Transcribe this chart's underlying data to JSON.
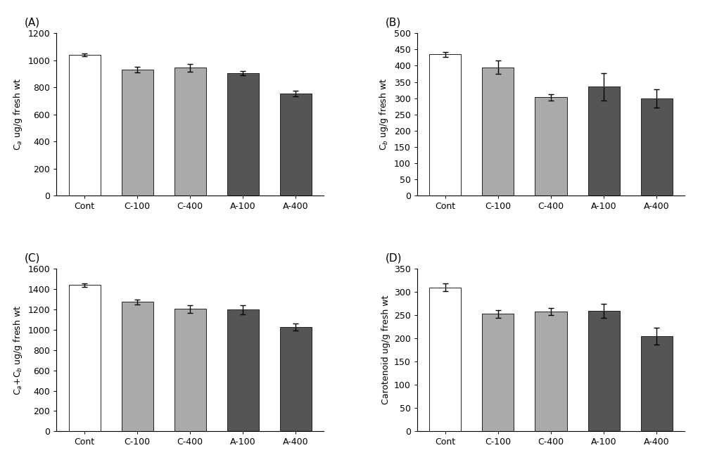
{
  "categories": [
    "Cont",
    "C-100",
    "C-400",
    "A-100",
    "A-400"
  ],
  "A": {
    "values": [
      1040,
      930,
      945,
      905,
      755
    ],
    "errors": [
      12,
      20,
      30,
      18,
      22
    ],
    "ylabel": "C$_a$ ug/g fresh wt",
    "ylim": [
      0,
      1200
    ],
    "yticks": [
      0,
      200,
      400,
      600,
      800,
      1000,
      1200
    ],
    "label": "(A)"
  },
  "B": {
    "values": [
      435,
      395,
      303,
      335,
      300
    ],
    "errors": [
      8,
      20,
      10,
      42,
      28
    ],
    "ylabel": "C$_b$ ug/g fresh wt",
    "ylim": [
      0,
      500
    ],
    "yticks": [
      0,
      50,
      100,
      150,
      200,
      250,
      300,
      350,
      400,
      450,
      500
    ],
    "label": "(B)"
  },
  "C": {
    "values": [
      1440,
      1275,
      1205,
      1200,
      1030
    ],
    "errors": [
      15,
      25,
      40,
      45,
      35
    ],
    "ylabel": "C$_a$+C$_b$ ug/g fresh wt",
    "ylim": [
      0,
      1600
    ],
    "yticks": [
      0,
      200,
      400,
      600,
      800,
      1000,
      1200,
      1400,
      1600
    ],
    "label": "(C)"
  },
  "D": {
    "values": [
      310,
      253,
      258,
      260,
      205
    ],
    "errors": [
      8,
      8,
      8,
      15,
      18
    ],
    "ylabel": "Carotenoid ug/g fresh wt",
    "ylim": [
      0,
      350
    ],
    "yticks": [
      0,
      50,
      100,
      150,
      200,
      250,
      300,
      350
    ],
    "label": "(D)"
  },
  "bar_colors": [
    "#ffffff",
    "#aaaaaa",
    "#aaaaaa",
    "#555555",
    "#555555"
  ],
  "bar_edgecolor": "#222222",
  "background_color": "#ffffff"
}
